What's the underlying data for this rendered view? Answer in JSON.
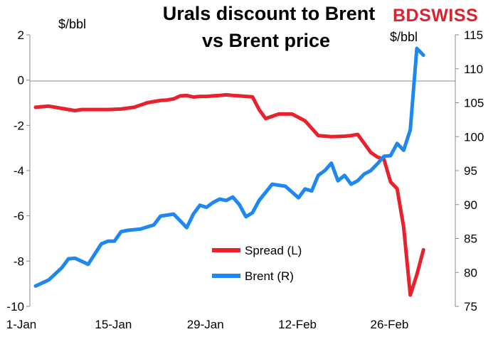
{
  "logo": {
    "text": "BDSWISS"
  },
  "chart_data": {
    "type": "line",
    "title": "Urals discount to Brent vs Brent price",
    "title_lines": [
      "Urals discount to Brent",
      "vs Brent price"
    ],
    "left_axis": {
      "unit_label": "$/bbl",
      "range": [
        -10,
        2
      ],
      "ticks": [
        2,
        0,
        -2,
        -4,
        -6,
        -8,
        -10
      ]
    },
    "right_axis": {
      "unit_label": "$/bbl",
      "range": [
        75,
        115
      ],
      "ticks": [
        115,
        110,
        105,
        100,
        95,
        90,
        85,
        80,
        75
      ]
    },
    "x_axis": {
      "tick_labels": [
        "1-Jan",
        "15-Jan",
        "29-Jan",
        "12-Feb",
        "26-Feb"
      ],
      "tick_days": [
        0,
        14,
        28,
        42,
        56
      ]
    },
    "grid": false,
    "legend_position": "center-bottom",
    "series": [
      {
        "name": "Spread (L)",
        "axis": "left",
        "color": "#e8222c",
        "x": [
          0,
          2,
          4,
          6,
          7,
          9,
          11,
          13,
          15,
          16,
          17,
          18,
          19,
          20,
          21,
          22,
          23,
          24,
          25,
          26,
          27,
          28,
          29,
          30,
          31,
          32,
          33,
          34,
          35,
          37,
          39,
          41,
          43,
          45,
          47,
          48,
          49,
          50,
          51,
          52,
          53,
          54,
          55,
          56,
          57,
          58,
          59
        ],
        "values": [
          -1.2,
          -1.15,
          -1.25,
          -1.35,
          -1.3,
          -1.3,
          -1.3,
          -1.28,
          -1.2,
          -1.1,
          -1.0,
          -0.95,
          -0.9,
          -0.88,
          -0.83,
          -0.7,
          -0.68,
          -0.75,
          -0.72,
          -0.72,
          -0.7,
          -0.68,
          -0.65,
          -0.68,
          -0.7,
          -0.72,
          -0.74,
          -1.3,
          -1.7,
          -1.5,
          -1.5,
          -1.8,
          -2.45,
          -2.5,
          -2.48,
          -2.45,
          -2.4,
          -2.8,
          -3.2,
          -3.4,
          -3.5,
          -4.5,
          -4.8,
          -6.5,
          -9.5,
          -8.6,
          -7.5
        ]
      },
      {
        "name": "Brent (R)",
        "axis": "right",
        "color": "#1e88f0",
        "x": [
          0,
          2,
          4,
          5,
          6,
          8,
          10,
          11,
          12,
          13,
          14,
          15,
          16,
          18,
          19,
          21,
          23,
          24,
          25,
          26,
          27,
          28,
          29,
          30,
          31,
          32,
          33,
          34,
          36,
          38,
          40,
          41,
          42,
          43,
          44,
          45,
          46,
          47,
          48,
          49,
          50,
          51,
          52,
          53,
          54,
          55,
          56,
          57,
          58,
          59
        ],
        "values": [
          78.0,
          78.9,
          80.7,
          82.0,
          82.1,
          81.2,
          84.2,
          84.6,
          84.6,
          86.0,
          86.2,
          86.3,
          86.4,
          87.0,
          88.3,
          88.6,
          86.6,
          88.6,
          89.9,
          89.6,
          90.3,
          90.8,
          90.6,
          91.1,
          90.0,
          88.2,
          88.8,
          90.6,
          93.0,
          92.7,
          91.0,
          92.3,
          92.0,
          94.3,
          95.0,
          96.1,
          93.5,
          94.3,
          93.0,
          93.5,
          94.5,
          95.0,
          96.0,
          97.1,
          97.2,
          99.0,
          98.0,
          101.0,
          113.0,
          112.0
        ]
      }
    ]
  }
}
